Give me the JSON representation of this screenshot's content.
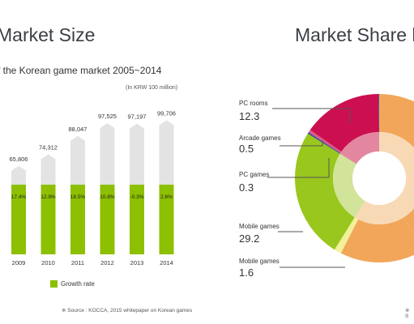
{
  "left_panel": {
    "title": "Market Size",
    "subtitle": "f the Korean game market 2005~2014",
    "unit": "(In KRW 100 million)",
    "legend": "Growth rate",
    "source": "※ Source : KOCCA, 2015 whitepaper on Korean games"
  },
  "right_panel": {
    "title": "Market Share by",
    "source_mark": "※ S"
  },
  "colors": {
    "bar_gray": "#e3e3e3",
    "bar_green": "#8cc000",
    "pc_rooms": "#cc0f50",
    "pc_rooms_inner": "#e2879f",
    "arcade": "#d95a8a",
    "pc_games": "#2d4a9c",
    "mobile": "#99c71d",
    "mobile_inner": "#d2e39a",
    "mobile_small": "#f2f19a",
    "orange": "#f2a65a",
    "orange_inner": "#f8d9b6",
    "callout_line": "#555555"
  },
  "chart_data": [
    {
      "type": "bar",
      "categories": [
        "2009",
        "2010",
        "2011",
        "2012",
        "2013",
        "2014"
      ],
      "series": [
        {
          "name": "",
          "values": [
            65806,
            74312,
            88047,
            97525,
            97197,
            99706
          ]
        },
        {
          "name": "Growth rate",
          "values": [
            17.4,
            12.9,
            18.5,
            10.8,
            -0.3,
            2.6
          ]
        }
      ],
      "value_labels": [
        "65,806",
        "74,312",
        "88,047",
        "97,525",
        "97,197",
        "99,706"
      ],
      "growth_labels": [
        "17.4%",
        "12.9%",
        "18.5%",
        "10.8%",
        "-0.3%",
        "2.6%"
      ],
      "ylim": [
        0,
        100000
      ]
    },
    {
      "type": "pie",
      "labels": [
        "PC rooms",
        "Arcade games",
        "PC games",
        "Mobile games",
        "Mobile games"
      ],
      "values": [
        12.3,
        0.5,
        0.3,
        29.2,
        1.6
      ],
      "value_labels": [
        "12.3",
        "0.5",
        "0.3",
        "29.2",
        "1.6"
      ]
    }
  ]
}
